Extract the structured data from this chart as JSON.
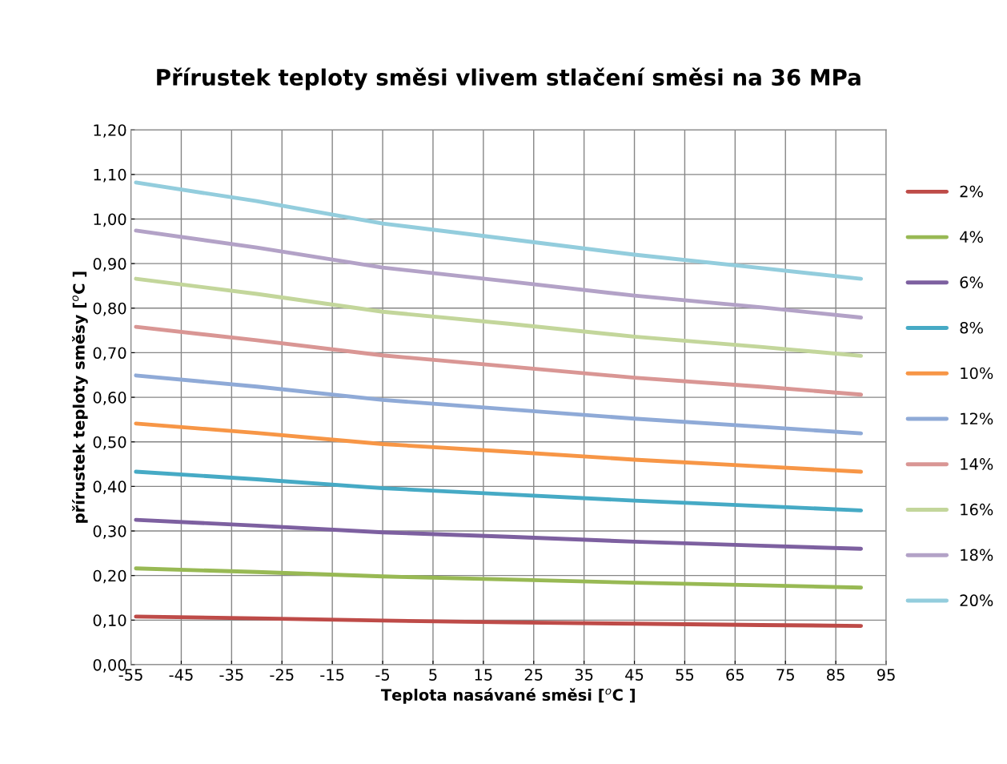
{
  "chart_data": {
    "type": "line",
    "title": "Přírustek teploty směsi vlivem stlačení směsi na 36 MPa",
    "xlabel": "Teplota nasávané směsi [$^{o}$C ]",
    "ylabel": "přírustek teploty směsy [$^{o}$C ]",
    "x": [
      -54,
      -30,
      -5,
      20,
      45,
      70,
      90
    ],
    "series": [
      {
        "name": "2%",
        "color": "#be4b48",
        "values": [
          0.108,
          0.104,
          0.099,
          0.095,
          0.092,
          0.089,
          0.087
        ]
      },
      {
        "name": "4%",
        "color": "#98b954",
        "values": [
          0.216,
          0.208,
          0.198,
          0.191,
          0.184,
          0.178,
          0.173
        ]
      },
      {
        "name": "6%",
        "color": "#7d60a0",
        "values": [
          0.325,
          0.312,
          0.297,
          0.287,
          0.276,
          0.267,
          0.26
        ]
      },
      {
        "name": "8%",
        "color": "#46aac5",
        "values": [
          0.433,
          0.416,
          0.396,
          0.382,
          0.368,
          0.356,
          0.346
        ]
      },
      {
        "name": "10%",
        "color": "#f79646",
        "values": [
          0.541,
          0.52,
          0.495,
          0.478,
          0.46,
          0.445,
          0.433
        ]
      },
      {
        "name": "12%",
        "color": "#8faad7",
        "values": [
          0.649,
          0.624,
          0.594,
          0.573,
          0.552,
          0.534,
          0.519
        ]
      },
      {
        "name": "14%",
        "color": "#d99694",
        "values": [
          0.758,
          0.728,
          0.694,
          0.669,
          0.644,
          0.624,
          0.606
        ]
      },
      {
        "name": "16%",
        "color": "#c3d69b",
        "values": [
          0.866,
          0.832,
          0.792,
          0.765,
          0.736,
          0.713,
          0.693
        ]
      },
      {
        "name": "18%",
        "color": "#b3a2c7",
        "values": [
          0.974,
          0.936,
          0.891,
          0.86,
          0.828,
          0.802,
          0.779
        ]
      },
      {
        "name": "20%",
        "color": "#93cddd",
        "values": [
          1.082,
          1.04,
          0.99,
          0.955,
          0.92,
          0.89,
          0.866
        ]
      }
    ],
    "xlim": [
      -55,
      95
    ],
    "xticks": [
      -55,
      -45,
      -35,
      -25,
      -15,
      -5,
      5,
      15,
      25,
      35,
      45,
      55,
      65,
      75,
      85,
      95
    ],
    "ylim": [
      0,
      1.2
    ],
    "yticks": [
      {
        "value": 0,
        "label": "0,00"
      },
      {
        "value": 0.1,
        "label": "0,10"
      },
      {
        "value": 0.2,
        "label": "0,20"
      },
      {
        "value": 0.3,
        "label": "0,30"
      },
      {
        "value": 0.4,
        "label": "0,40"
      },
      {
        "value": 0.5,
        "label": "0,50"
      },
      {
        "value": 0.6,
        "label": "0,60"
      },
      {
        "value": 0.7,
        "label": "0,70"
      },
      {
        "value": 0.8,
        "label": "0,80"
      },
      {
        "value": 0.9,
        "label": "0,90"
      },
      {
        "value": 1.0,
        "label": "1,00"
      },
      {
        "value": 1.1,
        "label": "1,10"
      },
      {
        "value": 1.2,
        "label": "1,20"
      }
    ],
    "grid": true,
    "legend": "right",
    "marker": "none",
    "line_style": "solid"
  }
}
